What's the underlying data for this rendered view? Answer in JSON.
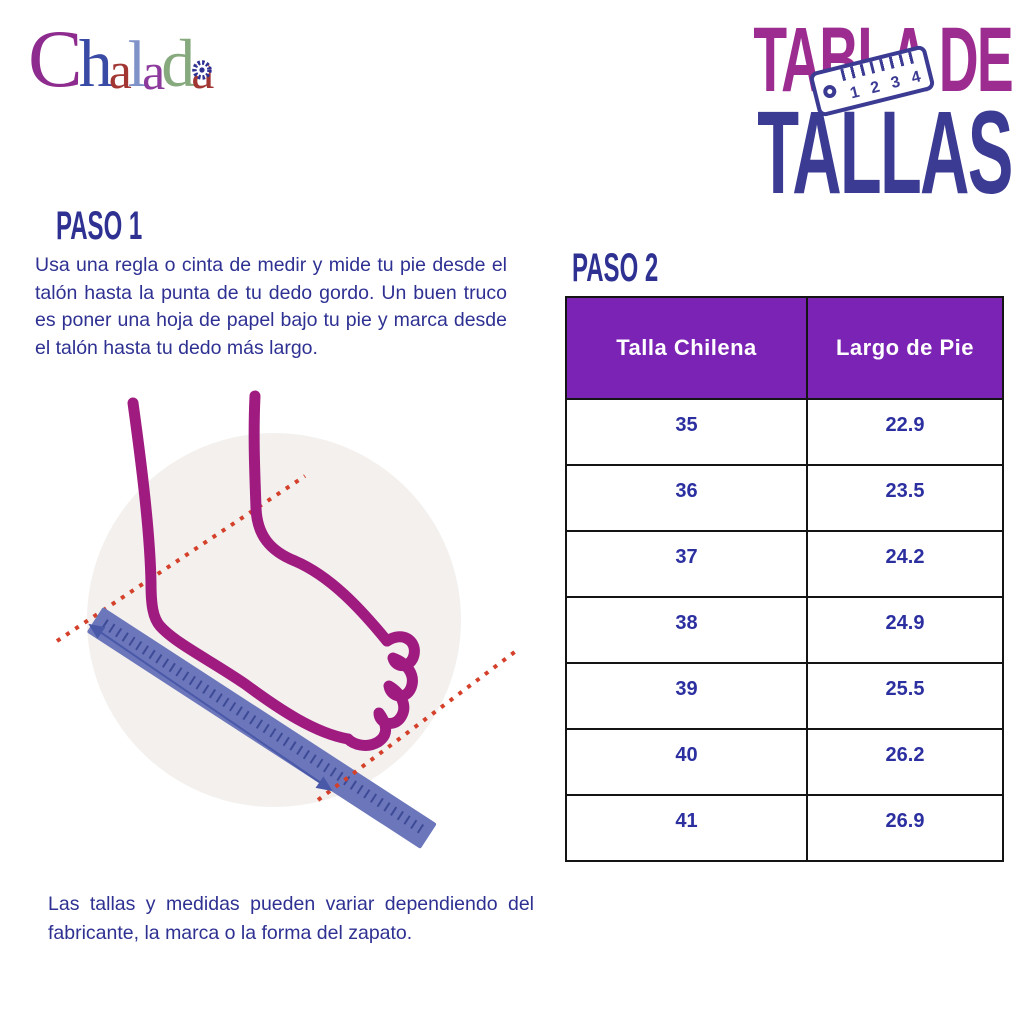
{
  "colors": {
    "ink": "#2e3192",
    "magenta": "#9c2c8f",
    "indigo": "#3c3b93",
    "header-purple": "#7b23b4",
    "cell-ink": "#2b2fa0",
    "tbl-border": "#141414",
    "foot": "#a01b80",
    "ruler-blue": "#6b76bb",
    "ruler-tick": "#3d4a96",
    "dot-red": "#d4402a",
    "arrow-blue": "#4a58a8",
    "circle-bg": "#f3f0ee"
  },
  "logo": {
    "brand": "Chalada",
    "letters": [
      {
        "char": "C",
        "color": "#8e2b8e"
      },
      {
        "char": "h",
        "color": "#3a4ba5"
      },
      {
        "char": "a",
        "color": "#a13633"
      },
      {
        "char": "l",
        "color": "#8093c8"
      },
      {
        "char": "a",
        "color": "#8c3a9c"
      },
      {
        "char": "d",
        "color": "#86a97e"
      },
      {
        "char": "a",
        "color": "#a13633"
      }
    ]
  },
  "title": {
    "line1": "TABLA DE",
    "line2": "TALLAS",
    "ruler_numbers": [
      "1",
      "2",
      "3",
      "4"
    ]
  },
  "paso1": {
    "heading": "PASO 1",
    "body": "Usa una regla o cinta de medir y mide tu pie desde el talón hasta la punta de tu dedo gordo. Un buen truco es poner una hoja de papel bajo tu pie y marca desde el talón hasta tu dedo más largo."
  },
  "paso2": {
    "heading": "PASO 2"
  },
  "size_table": {
    "headers": [
      "Talla Chilena",
      "Largo de Pie"
    ],
    "rows": [
      [
        "35",
        "22.9"
      ],
      [
        "36",
        "23.5"
      ],
      [
        "37",
        "24.2"
      ],
      [
        "38",
        "24.9"
      ],
      [
        "39",
        "25.5"
      ],
      [
        "40",
        "26.2"
      ],
      [
        "41",
        "26.9"
      ]
    ]
  },
  "note": "Las tallas y medidas pueden variar dependiendo del fabricante, la marca o la forma del zapato."
}
